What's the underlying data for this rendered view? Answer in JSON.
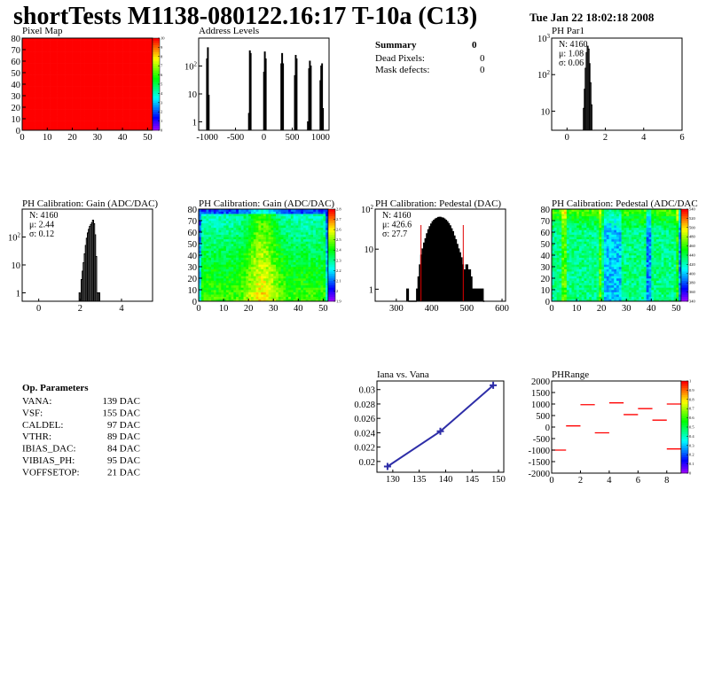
{
  "header": {
    "title": "shortTests M1138-080122.16:17 T-10a (C13)",
    "date": "Tue Jan 22 18:02:18 2008"
  },
  "summary": {
    "title": "Summary",
    "total": "0",
    "rows": [
      {
        "label": "Dead Pixels:",
        "value": "0"
      },
      {
        "label": "Mask defects:",
        "value": "0"
      }
    ]
  },
  "op_parameters": {
    "title": "Op. Parameters",
    "rows": [
      {
        "label": "VANA:",
        "value": "139 DAC"
      },
      {
        "label": "VSF:",
        "value": "155 DAC"
      },
      {
        "label": "CALDEL:",
        "value": "97 DAC"
      },
      {
        "label": "VTHR:",
        "value": "89 DAC"
      },
      {
        "label": "IBIAS_DAC:",
        "value": "84 DAC"
      },
      {
        "label": "VIBIAS_PH:",
        "value": "95 DAC"
      },
      {
        "label": "VOFFSETOP:",
        "value": "21 DAC"
      }
    ]
  },
  "chart_data": [
    {
      "id": "pixmap",
      "type": "heatmap",
      "title": "Pixel Map",
      "xlim": [
        0,
        52
      ],
      "ylim": [
        0,
        80
      ],
      "zlim": [
        0,
        10
      ],
      "uniform_value": 10,
      "xticks": [
        "0",
        "10",
        "20",
        "30",
        "40",
        "50"
      ],
      "xtick_values": [
        0,
        10,
        20,
        30,
        40,
        50
      ],
      "yticks": [
        "0",
        "10",
        "20",
        "30",
        "40",
        "50",
        "60",
        "70",
        "80"
      ],
      "ytick_values": [
        0,
        10,
        20,
        30,
        40,
        50,
        60,
        70,
        80
      ],
      "palette_labels": [
        "0",
        "1",
        "2",
        "3",
        "4",
        "5",
        "6",
        "7",
        "8",
        "9",
        "10"
      ]
    },
    {
      "id": "addr",
      "type": "bar",
      "title": "Address Levels",
      "ylog": true,
      "xlim": [
        -1150,
        1150
      ],
      "ylim": [
        0.5,
        1000
      ],
      "bin_width": 15,
      "bins": [
        [
          -1010,
          180
        ],
        [
          -995,
          450
        ],
        [
          -980,
          9
        ],
        [
          -270,
          2
        ],
        [
          -255,
          350
        ],
        [
          -240,
          280
        ],
        [
          -5,
          60
        ],
        [
          10,
          320
        ],
        [
          25,
          180
        ],
        [
          300,
          120
        ],
        [
          315,
          280
        ],
        [
          330,
          120
        ],
        [
          540,
          45
        ],
        [
          555,
          240
        ],
        [
          570,
          180
        ],
        [
          770,
          1
        ],
        [
          790,
          80
        ],
        [
          805,
          150
        ],
        [
          820,
          100
        ],
        [
          990,
          30
        ],
        [
          1005,
          100
        ],
        [
          1020,
          120
        ],
        [
          1035,
          3
        ]
      ],
      "xticks": [
        "-1000",
        "-500",
        "0",
        "500",
        "1000"
      ],
      "xtick_values": [
        -1000,
        -500,
        0,
        500,
        1000
      ],
      "yticks": [
        "1",
        "10",
        "10^2"
      ],
      "ytick_values": [
        1,
        10,
        100
      ]
    },
    {
      "id": "par1",
      "type": "bar",
      "title": "PH Par1",
      "ylog": true,
      "xlim": [
        -0.8,
        6
      ],
      "ylim": [
        3,
        1000
      ],
      "bin_start": 0.8,
      "bin_width": 0.05,
      "counts": [
        3,
        12,
        40,
        150,
        400,
        600,
        500,
        200,
        60,
        15,
        3
      ],
      "stats": [
        "N: 4160",
        "μ: 1.08",
        "σ: 0.06"
      ],
      "xticks": [
        "0",
        "2",
        "4",
        "6"
      ],
      "xtick_values": [
        0,
        2,
        4,
        6
      ],
      "yticks": [
        "10",
        "10^2",
        "10^3"
      ],
      "ytick_values": [
        10,
        100,
        1000
      ]
    },
    {
      "id": "gainhist",
      "type": "bar",
      "title": "PH Calibration: Gain (ADC/DAC)",
      "ylog": true,
      "xlim": [
        -0.8,
        5.5
      ],
      "ylim": [
        0.5,
        1000
      ],
      "bin_start": 1.95,
      "bin_width": 0.05,
      "counts": [
        1,
        0,
        3,
        6,
        12,
        25,
        50,
        90,
        140,
        190,
        240,
        280,
        330,
        400,
        300,
        120,
        20,
        1,
        1,
        1,
        0
      ],
      "stats": [
        "N: 4160",
        "μ: 2.44",
        "σ: 0.12"
      ],
      "xticks": [
        "0",
        "2",
        "4"
      ],
      "xtick_values": [
        0,
        2,
        4
      ],
      "yticks": [
        "1",
        "10",
        "10^2"
      ],
      "ytick_values": [
        1,
        10,
        100
      ]
    },
    {
      "id": "gainmap",
      "type": "heatmap",
      "title": "PH Calibration: Gain (ADC/DAC)",
      "xlim": [
        0,
        52
      ],
      "ylim": [
        0,
        80
      ],
      "zlim": [
        1.9,
        2.8
      ],
      "xticks": [
        "0",
        "10",
        "20",
        "30",
        "40",
        "50"
      ],
      "xtick_values": [
        0,
        10,
        20,
        30,
        40,
        50
      ],
      "yticks": [
        "0",
        "10",
        "20",
        "30",
        "40",
        "50",
        "60",
        "70",
        "80"
      ],
      "ytick_values": [
        0,
        10,
        20,
        30,
        40,
        50,
        60,
        70,
        80
      ],
      "palette_labels": [
        "1.9",
        "2",
        "2.1",
        "2.2",
        "2.3",
        "2.4",
        "2.5",
        "2.6",
        "2.7",
        "2.8"
      ]
    },
    {
      "id": "pedhist",
      "type": "bar",
      "title": "PH Calibration: Pedestal (DAC)",
      "ylog": true,
      "xlim": [
        240,
        610
      ],
      "ylim": [
        0.5,
        100
      ],
      "bin_start": 330,
      "bin_width": 4,
      "counts": [
        1,
        0,
        0,
        0,
        0,
        0,
        0,
        1,
        2,
        4,
        7,
        10,
        14,
        18,
        24,
        30,
        36,
        42,
        48,
        52,
        56,
        58,
        61,
        62,
        60,
        59,
        56,
        52,
        48,
        43,
        38,
        32,
        27,
        21,
        17,
        13,
        10,
        8,
        6,
        4,
        3,
        2,
        4,
        2,
        3,
        2,
        1,
        1,
        1,
        1,
        1,
        1,
        1,
        1,
        0
      ],
      "fit_range": [
        370,
        490
      ],
      "stats": [
        "N: 4160",
        "μ: 426.6",
        "σ: 27.7"
      ],
      "xticks": [
        "300",
        "400",
        "500",
        "600"
      ],
      "xtick_values": [
        300,
        400,
        500,
        600
      ],
      "yticks": [
        "1",
        "10",
        "10^2"
      ],
      "ytick_values": [
        1,
        10,
        100
      ]
    },
    {
      "id": "pedmap",
      "type": "heatmap",
      "title": "PH Calibration: Pedestal (ADC/DAC",
      "xlim": [
        0,
        52
      ],
      "ylim": [
        0,
        80
      ],
      "zlim": [
        340,
        540
      ],
      "xticks": [
        "0",
        "10",
        "20",
        "30",
        "40",
        "50"
      ],
      "xtick_values": [
        0,
        10,
        20,
        30,
        40,
        50
      ],
      "yticks": [
        "0",
        "10",
        "20",
        "30",
        "40",
        "50",
        "60",
        "70",
        "80"
      ],
      "ytick_values": [
        0,
        10,
        20,
        30,
        40,
        50,
        60,
        70,
        80
      ],
      "palette_labels": [
        "340",
        "360",
        "380",
        "400",
        "420",
        "440",
        "460",
        "480",
        "500",
        "520",
        "540"
      ]
    },
    {
      "id": "iana",
      "type": "line",
      "title": "Iana vs. Vana",
      "x": [
        129,
        139,
        149
      ],
      "y": [
        0.0193,
        0.0242,
        0.0306
      ],
      "xlim": [
        127,
        151
      ],
      "ylim": [
        0.0185,
        0.0312
      ],
      "color": "#2e2ea8",
      "xticks": [
        "130",
        "135",
        "140",
        "145",
        "150"
      ],
      "xtick_values": [
        130,
        135,
        140,
        145,
        150
      ],
      "yticks": [
        "0.02",
        "0.022",
        "0.024",
        "0.026",
        "0.028",
        "0.03"
      ],
      "ytick_values": [
        0.02,
        0.022,
        0.024,
        0.026,
        0.028,
        0.03
      ]
    },
    {
      "id": "phrange",
      "type": "heatmap",
      "title": "PHRange",
      "xlim": [
        0,
        9
      ],
      "ylim": [
        -2000,
        2000
      ],
      "zlim": [
        0,
        1
      ],
      "segments": [
        [
          0,
          -1000
        ],
        [
          1,
          50
        ],
        [
          2,
          970
        ],
        [
          3,
          -250
        ],
        [
          4,
          1050
        ],
        [
          5,
          540
        ],
        [
          6,
          800
        ],
        [
          7,
          300
        ],
        [
          8,
          1000
        ],
        [
          8,
          -950
        ]
      ],
      "color": "#ff0000",
      "xticks": [
        "0",
        "2",
        "4",
        "6",
        "8"
      ],
      "xtick_values": [
        0,
        2,
        4,
        6,
        8
      ],
      "yticks": [
        "2000",
        "1500",
        "1000",
        "500",
        "0",
        "-500",
        "-1000",
        "-1500",
        "-2000"
      ],
      "ytick_values": [
        2000,
        1500,
        1000,
        500,
        0,
        -500,
        -1000,
        -1500,
        -2000
      ],
      "palette_labels": [
        "0",
        "0.1",
        "0.2",
        "0.3",
        "0.4",
        "0.5",
        "0.6",
        "0.7",
        "0.8",
        "0.9",
        "1"
      ]
    }
  ]
}
